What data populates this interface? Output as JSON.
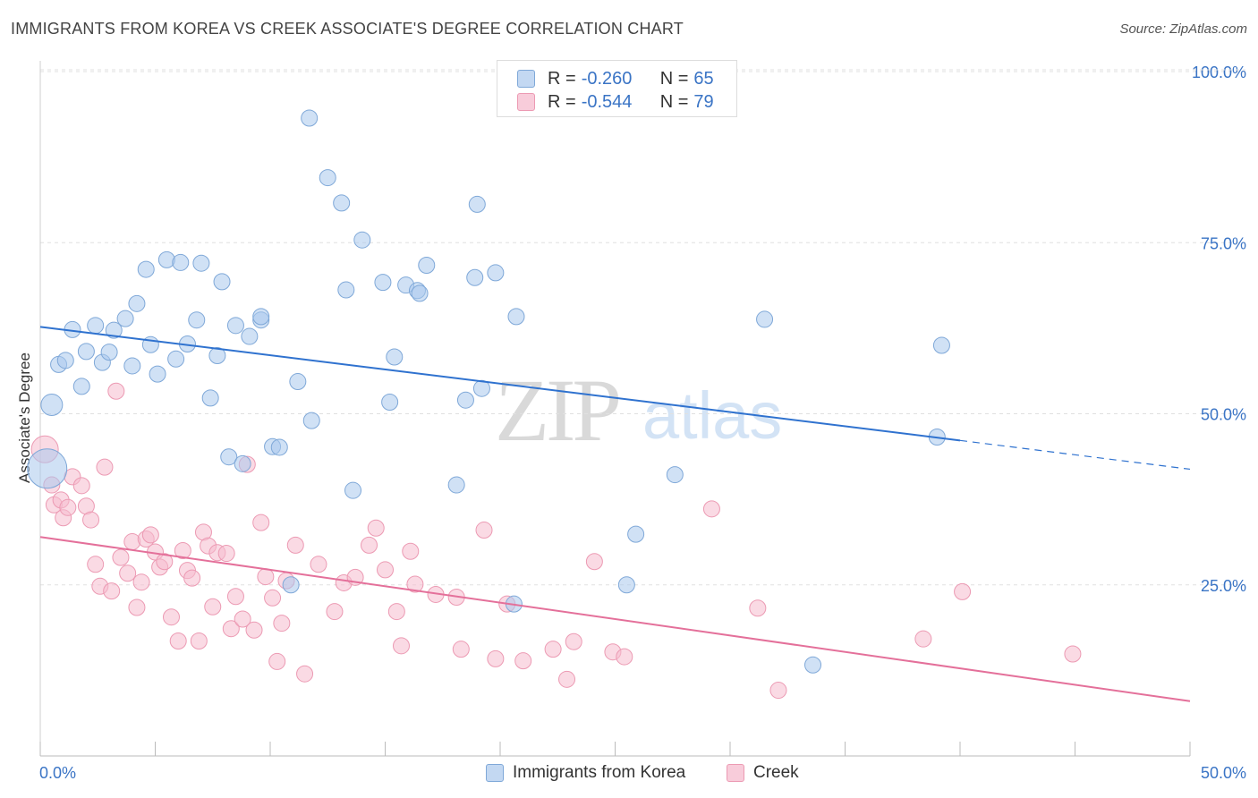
{
  "header": {
    "title": "IMMIGRANTS FROM KOREA VS CREEK ASSOCIATE'S DEGREE CORRELATION CHART",
    "source": "Source: ZipAtlas.com"
  },
  "watermark": {
    "zip": "ZIP",
    "atlas": "atlas"
  },
  "legend": {
    "rows": [
      {
        "r_label": "R =",
        "r_value": "-0.260",
        "n_label": "N =",
        "n_value": "65"
      },
      {
        "r_label": "R =",
        "r_value": "-0.544",
        "n_label": "N =",
        "n_value": "79"
      }
    ]
  },
  "bottom_legend": {
    "korea": "Immigrants from Korea",
    "creek": "Creek"
  },
  "colors": {
    "blue_fill": "#a9c8ec",
    "blue_stroke": "#7fa8d8",
    "blue_line": "#2f72cf",
    "pink_fill": "#f5bccd",
    "pink_stroke": "#ec9ab3",
    "pink_line": "#e4709a",
    "tick_label": "#3a74c5"
  },
  "chart_data": {
    "type": "scatter",
    "title": "IMMIGRANTS FROM KOREA VS CREEK ASSOCIATE'S DEGREE CORRELATION CHART",
    "xlabel": "",
    "ylabel": "Associate's Degree",
    "xlim": [
      0,
      50
    ],
    "ylim": [
      0,
      102
    ],
    "x_tick_labels": [
      "0.0%",
      "50.0%"
    ],
    "y_ticks": [
      25,
      50,
      75,
      100
    ],
    "y_tick_labels": [
      "25.0%",
      "50.0%",
      "75.0%",
      "100.0%"
    ],
    "grid": true,
    "legend_position": "top-center",
    "series": [
      {
        "name": "Immigrants from Korea",
        "color": "#a9c8ec",
        "trend": {
          "x": [
            0,
            40
          ],
          "y": [
            62.7,
            46.1
          ],
          "dashed_to": [
            50,
            41.9
          ]
        },
        "points": [
          [
            0.5,
            51.3
          ],
          [
            0.8,
            57.2
          ],
          [
            1.1,
            57.8
          ],
          [
            1.4,
            62.3
          ],
          [
            1.8,
            54.0
          ],
          [
            2.0,
            59.1
          ],
          [
            2.4,
            62.9
          ],
          [
            2.7,
            57.5
          ],
          [
            3.0,
            59.0
          ],
          [
            3.2,
            62.2
          ],
          [
            3.7,
            63.9
          ],
          [
            4.0,
            57.0
          ],
          [
            4.2,
            66.1
          ],
          [
            4.6,
            71.1
          ],
          [
            4.8,
            60.1
          ],
          [
            5.1,
            55.8
          ],
          [
            5.5,
            72.5
          ],
          [
            5.9,
            58.0
          ],
          [
            6.1,
            72.1
          ],
          [
            6.4,
            60.2
          ],
          [
            6.8,
            63.7
          ],
          [
            7.0,
            72.0
          ],
          [
            7.4,
            52.3
          ],
          [
            7.7,
            58.5
          ],
          [
            7.9,
            69.3
          ],
          [
            8.2,
            43.7
          ],
          [
            8.5,
            62.9
          ],
          [
            8.8,
            42.7
          ],
          [
            9.1,
            61.3
          ],
          [
            9.6,
            63.7
          ],
          [
            9.6,
            64.2
          ],
          [
            10.1,
            45.2
          ],
          [
            10.4,
            45.1
          ],
          [
            10.9,
            25.0
          ],
          [
            11.2,
            54.7
          ],
          [
            11.7,
            93.2
          ],
          [
            11.8,
            49.0
          ],
          [
            12.5,
            84.5
          ],
          [
            13.1,
            80.8
          ],
          [
            13.3,
            68.1
          ],
          [
            13.6,
            38.8
          ],
          [
            14.0,
            75.4
          ],
          [
            14.9,
            69.2
          ],
          [
            15.2,
            51.7
          ],
          [
            15.4,
            58.3
          ],
          [
            15.9,
            68.8
          ],
          [
            16.4,
            68.0
          ],
          [
            16.5,
            67.6
          ],
          [
            16.8,
            71.7
          ],
          [
            18.1,
            39.6
          ],
          [
            18.5,
            52.0
          ],
          [
            18.9,
            69.9
          ],
          [
            19.0,
            80.6
          ],
          [
            19.2,
            53.7
          ],
          [
            19.8,
            70.6
          ],
          [
            20.6,
            22.2
          ],
          [
            20.7,
            64.2
          ],
          [
            25.9,
            32.4
          ],
          [
            25.5,
            25.0
          ],
          [
            27.6,
            41.1
          ],
          [
            31.5,
            63.8
          ],
          [
            33.6,
            13.3
          ],
          [
            39.2,
            60.0
          ],
          [
            39.0,
            46.6
          ],
          [
            0.3,
            42.0
          ]
        ]
      },
      {
        "name": "Creek",
        "color": "#f5bccd",
        "trend": {
          "x": [
            0,
            50
          ],
          "y": [
            32.0,
            8.0
          ]
        },
        "points": [
          [
            0.2,
            44.8
          ],
          [
            0.5,
            39.6
          ],
          [
            0.6,
            36.7
          ],
          [
            0.9,
            37.4
          ],
          [
            1.0,
            34.8
          ],
          [
            1.2,
            36.3
          ],
          [
            1.4,
            40.8
          ],
          [
            1.8,
            39.5
          ],
          [
            2.0,
            36.5
          ],
          [
            2.2,
            34.5
          ],
          [
            2.4,
            28.0
          ],
          [
            2.6,
            24.8
          ],
          [
            2.8,
            42.2
          ],
          [
            3.1,
            24.1
          ],
          [
            3.3,
            53.3
          ],
          [
            3.5,
            29.0
          ],
          [
            3.8,
            26.7
          ],
          [
            4.0,
            31.3
          ],
          [
            4.2,
            21.7
          ],
          [
            4.4,
            25.4
          ],
          [
            4.6,
            31.7
          ],
          [
            4.8,
            32.3
          ],
          [
            5.0,
            29.8
          ],
          [
            5.2,
            27.6
          ],
          [
            5.4,
            28.4
          ],
          [
            5.7,
            20.3
          ],
          [
            6.0,
            16.8
          ],
          [
            6.2,
            30.0
          ],
          [
            6.4,
            27.1
          ],
          [
            6.6,
            26.0
          ],
          [
            6.9,
            16.8
          ],
          [
            7.1,
            32.7
          ],
          [
            7.3,
            30.7
          ],
          [
            7.5,
            21.8
          ],
          [
            7.7,
            29.7
          ],
          [
            8.1,
            29.6
          ],
          [
            8.3,
            18.6
          ],
          [
            8.5,
            23.3
          ],
          [
            8.8,
            20.0
          ],
          [
            9.0,
            42.6
          ],
          [
            9.3,
            18.4
          ],
          [
            9.6,
            34.1
          ],
          [
            9.8,
            26.2
          ],
          [
            10.1,
            23.1
          ],
          [
            10.3,
            13.8
          ],
          [
            10.5,
            19.4
          ],
          [
            10.7,
            25.6
          ],
          [
            11.1,
            30.8
          ],
          [
            11.5,
            12.0
          ],
          [
            12.1,
            28.0
          ],
          [
            12.8,
            21.1
          ],
          [
            13.2,
            25.3
          ],
          [
            13.7,
            26.1
          ],
          [
            14.3,
            30.8
          ],
          [
            14.6,
            33.3
          ],
          [
            15.0,
            27.2
          ],
          [
            15.5,
            21.1
          ],
          [
            15.7,
            16.1
          ],
          [
            16.1,
            29.9
          ],
          [
            16.3,
            25.1
          ],
          [
            17.2,
            23.6
          ],
          [
            18.1,
            23.2
          ],
          [
            18.3,
            15.6
          ],
          [
            19.3,
            33.0
          ],
          [
            19.8,
            14.2
          ],
          [
            20.3,
            22.2
          ],
          [
            21.0,
            13.9
          ],
          [
            22.3,
            15.6
          ],
          [
            22.9,
            11.2
          ],
          [
            23.2,
            16.7
          ],
          [
            24.1,
            28.4
          ],
          [
            24.9,
            15.2
          ],
          [
            25.4,
            14.5
          ],
          [
            29.2,
            36.1
          ],
          [
            31.2,
            21.6
          ],
          [
            32.1,
            9.6
          ],
          [
            38.4,
            17.1
          ],
          [
            40.1,
            24.0
          ],
          [
            44.9,
            14.9
          ]
        ]
      }
    ]
  }
}
